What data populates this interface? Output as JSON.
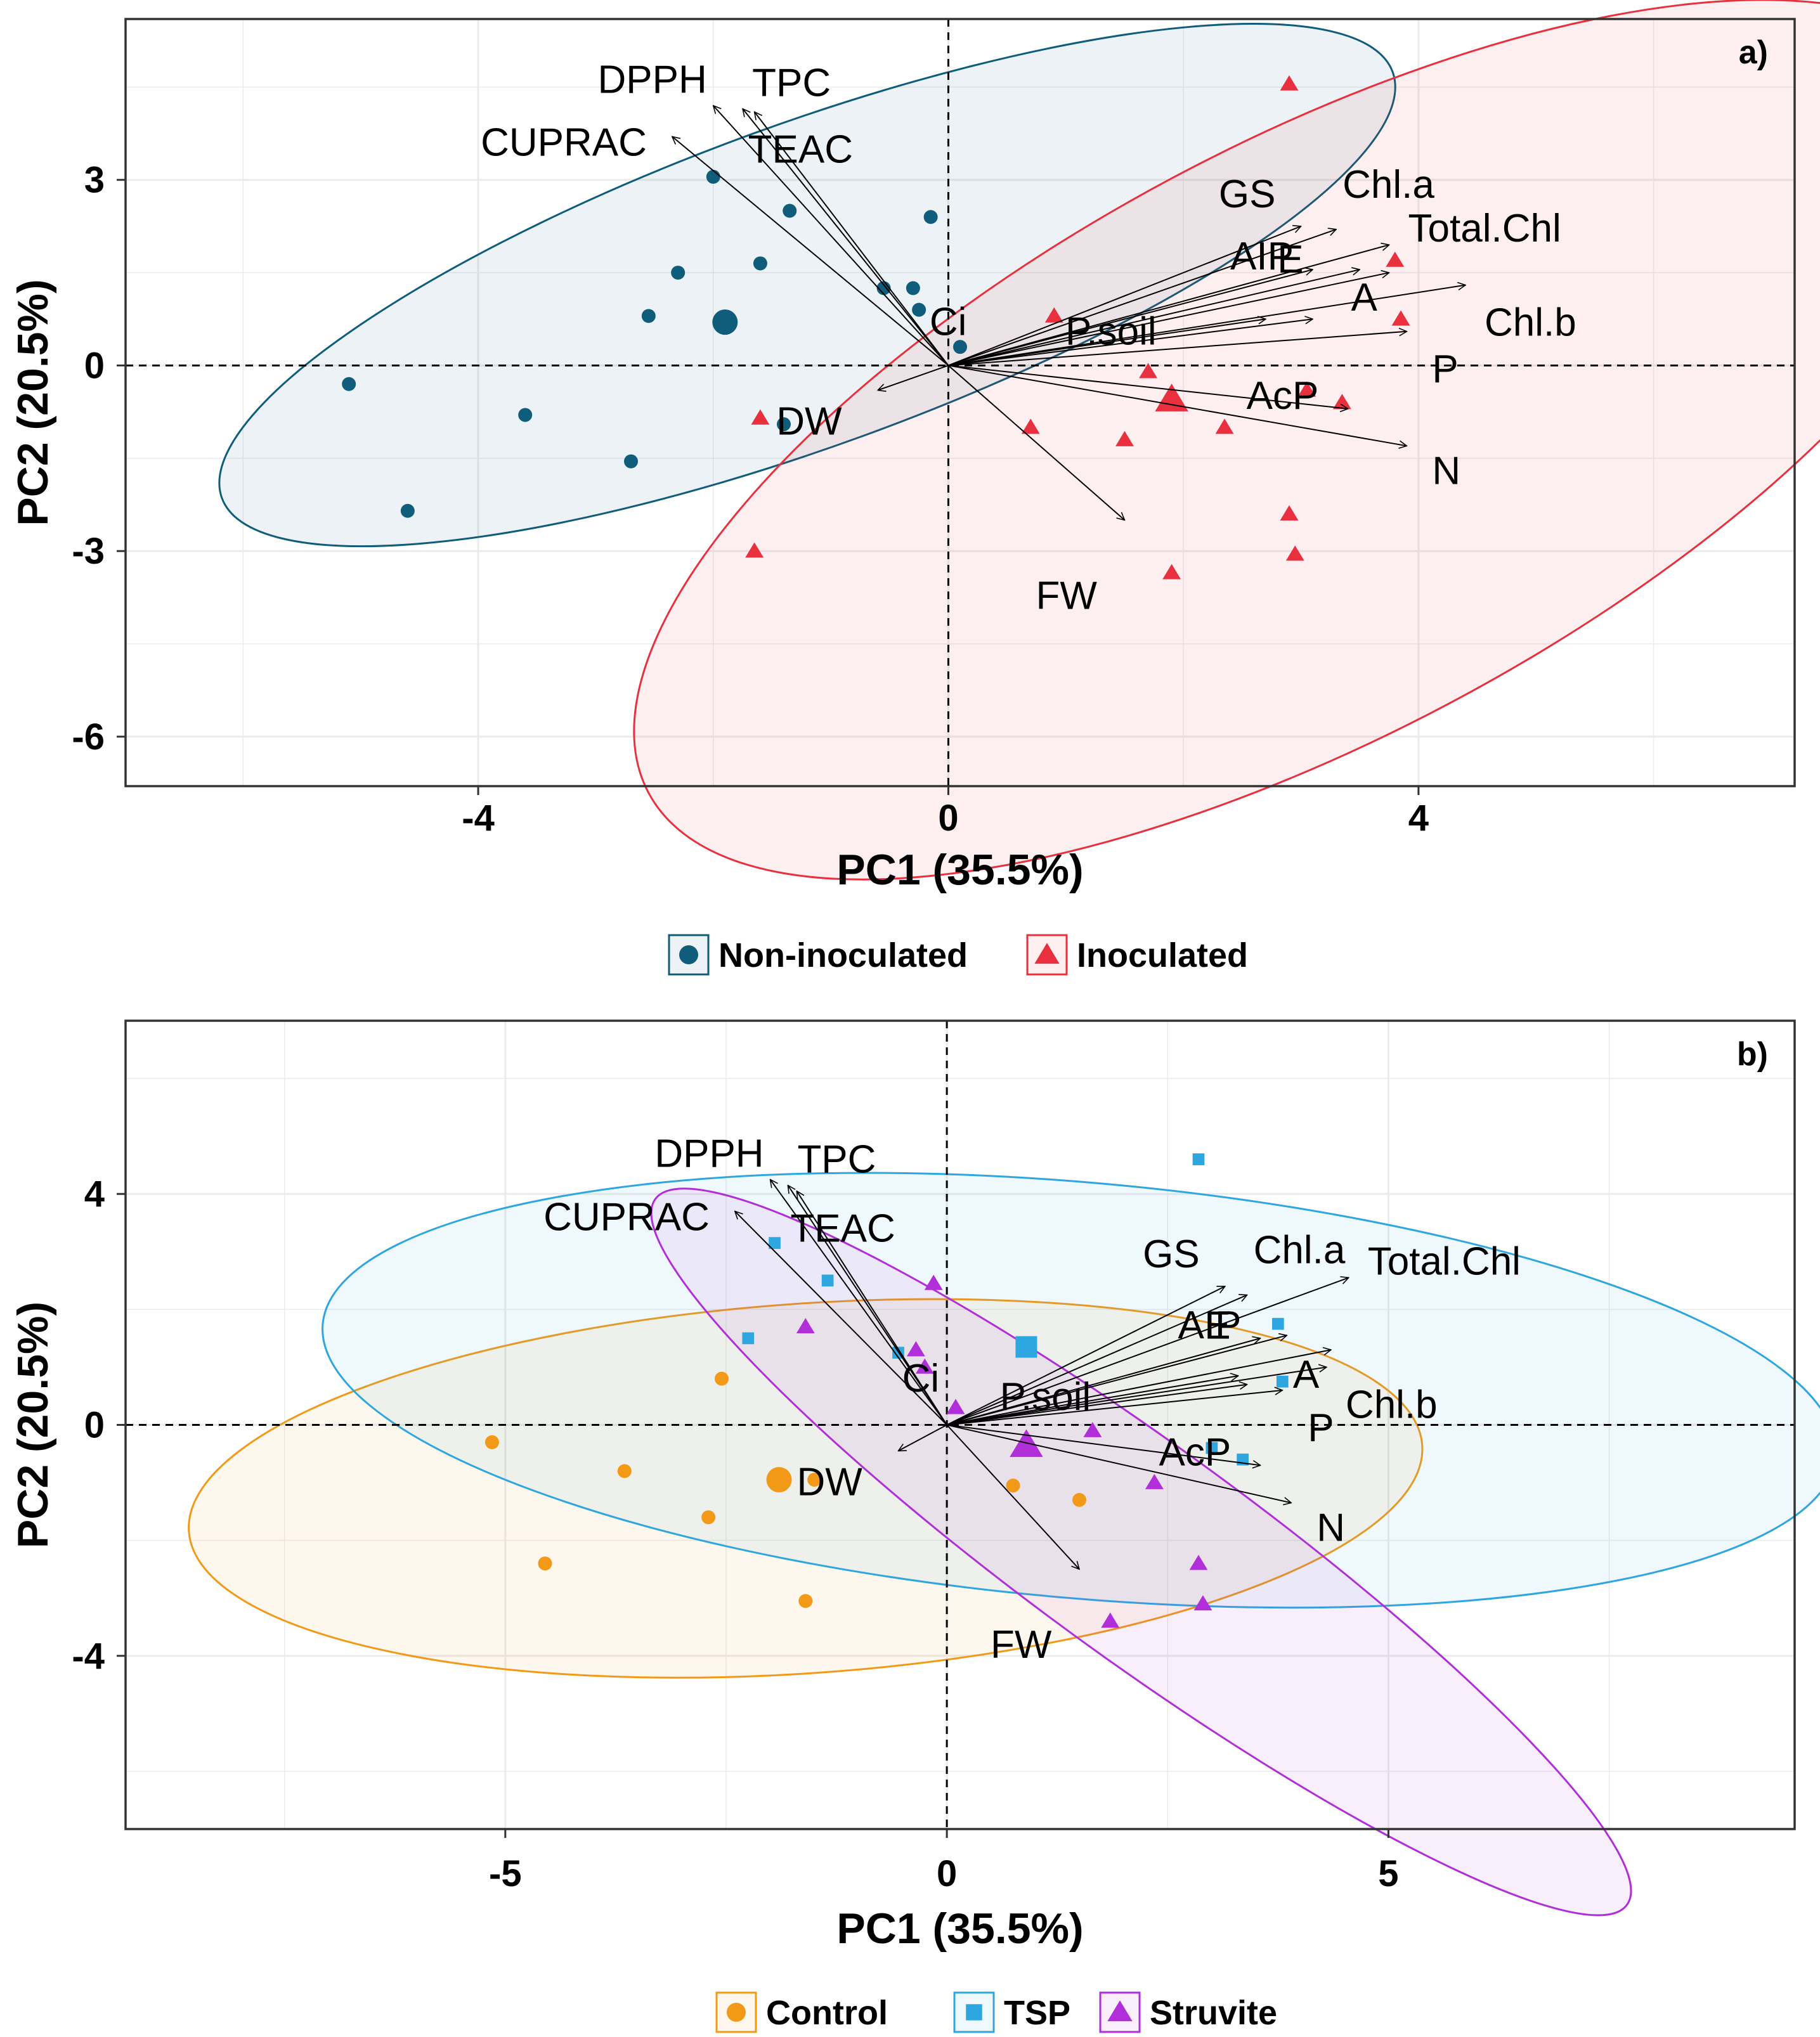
{
  "chart_data": [
    {
      "type": "scatter",
      "panel_label": "a)",
      "xlabel": "PC1 (35.5%)",
      "ylabel": "PC2 (20.5%)",
      "xlim": [
        -7.0,
        7.2
      ],
      "ylim": [
        -6.8,
        5.6
      ],
      "xticks": [
        -4,
        0,
        4
      ],
      "yticks": [
        3,
        0,
        -3,
        -6
      ],
      "tick_labels_x": [
        "-4",
        "0",
        "4"
      ],
      "tick_labels_y": [
        "3",
        "0",
        "-3",
        "-6"
      ],
      "grid": true,
      "legend_position": "bottom",
      "groups": [
        {
          "name": "Non-inoculated",
          "color": "#0f5d7b",
          "shape": "circle",
          "points": [
            [
              -5.1,
              -0.3
            ],
            [
              -4.6,
              -2.35
            ],
            [
              -3.6,
              -0.8
            ],
            [
              -2.7,
              -1.55
            ],
            [
              -2.55,
              0.8
            ],
            [
              -2.3,
              1.5
            ],
            [
              -2.0,
              3.05
            ],
            [
              -1.6,
              1.65
            ],
            [
              -1.35,
              2.5
            ],
            [
              -1.4,
              -0.95
            ],
            [
              -0.55,
              1.25
            ],
            [
              -0.3,
              1.25
            ],
            [
              -0.25,
              0.9
            ],
            [
              -0.15,
              2.4
            ],
            [
              0.1,
              0.3
            ]
          ],
          "centroid": [
            -1.9,
            0.7
          ],
          "ellipse": {
            "center": [
              -1.2,
              1.3
            ],
            "rx": 5.3,
            "ry": 2.6,
            "angle": 20
          }
        },
        {
          "name": "Inoculated",
          "color": "#e8303e",
          "shape": "triangle",
          "points": [
            [
              2.9,
              4.55
            ],
            [
              3.8,
              1.7
            ],
            [
              3.85,
              0.75
            ],
            [
              0.9,
              0.8
            ],
            [
              1.7,
              -0.1
            ],
            [
              3.05,
              -0.4
            ],
            [
              3.35,
              -0.6
            ],
            [
              -1.6,
              -0.85
            ],
            [
              0.7,
              -1.0
            ],
            [
              1.5,
              -1.2
            ],
            [
              2.35,
              -1.0
            ],
            [
              2.9,
              -2.4
            ],
            [
              2.95,
              -3.05
            ],
            [
              1.9,
              -3.35
            ],
            [
              -1.65,
              -3.0
            ]
          ],
          "centroid": [
            1.9,
            -0.55
          ],
          "ellipse": {
            "center": [
              3.1,
              -1.2
            ],
            "rx": 6.4,
            "ry": 4.8,
            "angle": 28
          }
        }
      ],
      "loadings": [
        {
          "name": "DPPH",
          "x": -2.0,
          "y": 4.2
        },
        {
          "name": "TPC",
          "x": -1.75,
          "y": 4.15
        },
        {
          "name": "TEAC",
          "x": -1.65,
          "y": 4.1
        },
        {
          "name": "CUPRAC",
          "x": -2.35,
          "y": 3.7
        },
        {
          "name": "GS",
          "x": 3.0,
          "y": 2.25
        },
        {
          "name": "Chl.a",
          "x": 3.3,
          "y": 2.2
        },
        {
          "name": "Total.Chl",
          "x": 3.75,
          "y": 1.95
        },
        {
          "name": "AIP",
          "x": 3.1,
          "y": 1.55
        },
        {
          "name": "E",
          "x": 3.5,
          "y": 1.55
        },
        {
          "name": "A",
          "x": 3.75,
          "y": 1.5
        },
        {
          "name": "Chl.b",
          "x": 4.4,
          "y": 1.3
        },
        {
          "name": "Ci",
          "x": 2.7,
          "y": 0.75
        },
        {
          "name": "P.soil",
          "x": 3.1,
          "y": 0.75
        },
        {
          "name": "P",
          "x": 3.9,
          "y": 0.55
        },
        {
          "name": "AcP",
          "x": 3.4,
          "y": -0.7
        },
        {
          "name": "N",
          "x": 3.9,
          "y": -1.3
        },
        {
          "name": "DW",
          "x": -0.6,
          "y": -0.4
        },
        {
          "name": "FW",
          "x": 1.5,
          "y": -2.5
        }
      ]
    },
    {
      "type": "scatter",
      "panel_label": "b)",
      "xlabel": "PC1 (35.5%)",
      "ylabel": "PC2 (20.5%)",
      "xlim": [
        -9.3,
        9.6
      ],
      "ylim": [
        -7.0,
        7.0
      ],
      "xticks": [
        -5,
        0,
        5
      ],
      "yticks": [
        4,
        0,
        -4
      ],
      "tick_labels_x": [
        "-5",
        "0",
        "5"
      ],
      "tick_labels_y": [
        "4",
        "0",
        "-4"
      ],
      "grid": true,
      "legend_position": "bottom",
      "groups": [
        {
          "name": "Control",
          "color": "#f29a17",
          "shape": "circle",
          "points": [
            [
              -5.15,
              -0.3
            ],
            [
              -4.55,
              -2.4
            ],
            [
              -3.65,
              -0.8
            ],
            [
              -2.7,
              -1.6
            ],
            [
              -2.55,
              0.8
            ],
            [
              -1.6,
              -3.05
            ],
            [
              -1.5,
              -0.95
            ],
            [
              0.75,
              -1.05
            ],
            [
              1.5,
              -1.3
            ]
          ],
          "centroid": [
            -1.9,
            -0.95
          ],
          "ellipse": {
            "center": [
              -1.6,
              -1.1
            ],
            "rx": 7.0,
            "ry": 3.2,
            "angle": 4
          }
        },
        {
          "name": "TSP",
          "color": "#2ea6df",
          "shape": "square",
          "points": [
            [
              2.85,
              4.6
            ],
            [
              3.75,
              1.75
            ],
            [
              3.8,
              0.75
            ],
            [
              -1.95,
              3.15
            ],
            [
              -1.35,
              2.5
            ],
            [
              -2.25,
              1.5
            ],
            [
              -0.55,
              1.25
            ],
            [
              3.0,
              -0.4
            ],
            [
              3.35,
              -0.6
            ]
          ],
          "centroid": [
            0.9,
            1.35
          ],
          "ellipse": {
            "center": [
              1.5,
              0.6
            ],
            "rx": 8.6,
            "ry": 3.6,
            "angle": -5
          }
        },
        {
          "name": "Struvite",
          "color": "#b12fd8",
          "shape": "triangle",
          "points": [
            [
              -0.15,
              2.45
            ],
            [
              -1.6,
              1.7
            ],
            [
              -0.35,
              1.3
            ],
            [
              -0.25,
              1.0
            ],
            [
              0.1,
              0.3
            ],
            [
              1.65,
              -0.1
            ],
            [
              2.35,
              -1.0
            ],
            [
              2.85,
              -2.4
            ],
            [
              2.9,
              -3.1
            ],
            [
              1.85,
              -3.4
            ]
          ],
          "centroid": [
            0.9,
            -0.35
          ],
          "ellipse": {
            "center": [
              2.2,
              -2.2
            ],
            "rx": 6.8,
            "ry": 1.85,
            "angle": -36
          }
        }
      ],
      "loadings": [
        {
          "name": "DPPH",
          "x": -2.0,
          "y": 4.25
        },
        {
          "name": "TPC",
          "x": -1.8,
          "y": 4.15
        },
        {
          "name": "TEAC",
          "x": -1.7,
          "y": 4.05
        },
        {
          "name": "CUPRAC",
          "x": -2.4,
          "y": 3.7
        },
        {
          "name": "GS",
          "x": 3.15,
          "y": 2.4
        },
        {
          "name": "Chl.a",
          "x": 3.4,
          "y": 2.25
        },
        {
          "name": "Total.Chl",
          "x": 4.55,
          "y": 2.55
        },
        {
          "name": "AIP",
          "x": 3.55,
          "y": 1.5
        },
        {
          "name": "E",
          "x": 3.85,
          "y": 1.55
        },
        {
          "name": "A",
          "x": 4.35,
          "y": 1.3
        },
        {
          "name": "Chl.b",
          "x": 4.3,
          "y": 1.0
        },
        {
          "name": "Ci",
          "x": 3.3,
          "y": 0.85
        },
        {
          "name": "P.soil",
          "x": 3.4,
          "y": 0.7
        },
        {
          "name": "P",
          "x": 3.8,
          "y": 0.6
        },
        {
          "name": "AcP",
          "x": 3.55,
          "y": -0.7
        },
        {
          "name": "N",
          "x": 3.9,
          "y": -1.35
        },
        {
          "name": "DW",
          "x": -0.55,
          "y": -0.45
        },
        {
          "name": "FW",
          "x": 1.5,
          "y": -2.5
        }
      ]
    }
  ]
}
